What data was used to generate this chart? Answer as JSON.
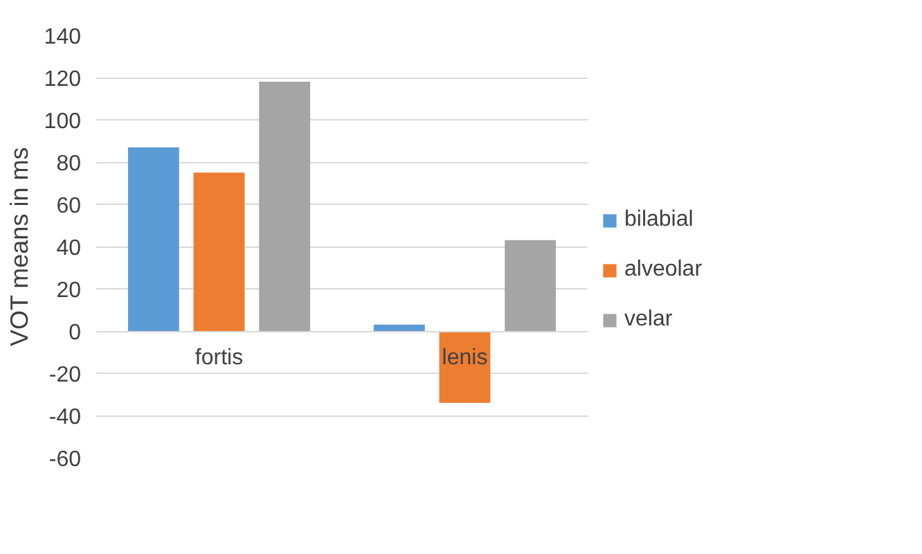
{
  "chart_data": {
    "type": "bar",
    "ylabel": "VOT means in ms",
    "categories": [
      "fortis",
      "lenis"
    ],
    "series": [
      {
        "name": "bilabial",
        "color": "#5b9bd5",
        "values": [
          87,
          3
        ]
      },
      {
        "name": "alveolar",
        "color": "#ed7d31",
        "values": [
          75,
          -34
        ]
      },
      {
        "name": "velar",
        "color": "#a5a5a5",
        "values": [
          118,
          43
        ]
      }
    ],
    "ylim": [
      -60,
      140
    ],
    "yticks": [
      -60,
      -40,
      -20,
      0,
      20,
      40,
      60,
      80,
      100,
      120,
      140
    ],
    "grid": "y",
    "legend": "right"
  }
}
